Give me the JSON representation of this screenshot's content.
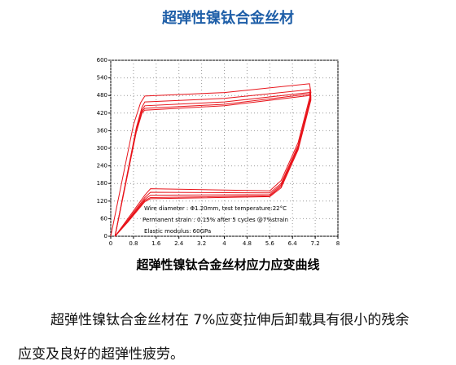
{
  "title": "超弹性镍钛合金丝材",
  "chart_data": {
    "type": "line",
    "xlim": [
      0,
      8
    ],
    "xticks": [
      0,
      0.8,
      1.6,
      2.4,
      3.2,
      4,
      4.8,
      5.6,
      6.4,
      7.2,
      8
    ],
    "ylim": [
      0,
      600
    ],
    "yticks": [
      0,
      60,
      120,
      180,
      240,
      300,
      360,
      420,
      480,
      540,
      600
    ],
    "grid": true,
    "annotations": [
      "Wire diameter : Φ1.20mm, test temperature:22°C",
      "Permanent strain : 0.15% after 5 cycles @7%strain",
      "Elastic modulus: 60GPa"
    ],
    "series": [
      {
        "color": "#e8141b",
        "x": [
          0,
          0.8,
          1.05,
          1.2,
          4,
          7,
          7.05,
          6.6,
          6.0,
          5.6,
          1.4,
          1.2,
          0.6,
          0.15
        ],
        "values": [
          0,
          380,
          455,
          478,
          490,
          520,
          490,
          320,
          190,
          155,
          162,
          140,
          60,
          0
        ]
      },
      {
        "color": "#e8141b",
        "x": [
          0.15,
          0.9,
          1.1,
          1.2,
          4,
          7,
          7.05,
          6.6,
          6.0,
          5.6,
          1.4,
          1.2,
          0.6,
          0.15
        ],
        "values": [
          0,
          370,
          440,
          458,
          470,
          500,
          480,
          310,
          180,
          148,
          150,
          132,
          55,
          0
        ]
      },
      {
        "color": "#e8141b",
        "x": [
          0.15,
          0.9,
          1.1,
          1.2,
          4,
          7,
          7.05,
          6.6,
          6.0,
          5.6,
          1.4,
          1.2,
          0.6,
          0.15
        ],
        "values": [
          0,
          365,
          430,
          445,
          458,
          490,
          475,
          305,
          175,
          142,
          140,
          126,
          52,
          0
        ]
      },
      {
        "color": "#e8141b",
        "x": [
          0.15,
          0.9,
          1.1,
          1.2,
          4,
          7,
          7.05,
          6.6,
          6.0,
          5.6,
          1.4,
          1.2,
          0.6,
          0.15
        ],
        "values": [
          0,
          360,
          425,
          436,
          450,
          485,
          470,
          300,
          170,
          138,
          132,
          122,
          50,
          0
        ]
      },
      {
        "color": "#e8141b",
        "x": [
          0.15,
          0.9,
          1.1,
          1.2,
          4,
          7,
          7.05,
          6.6,
          6.0,
          5.6,
          1.4,
          1.2,
          0.6,
          0.15
        ],
        "values": [
          0,
          355,
          420,
          430,
          445,
          480,
          465,
          295,
          165,
          135,
          128,
          118,
          48,
          0
        ]
      }
    ]
  },
  "caption": "超弹性镍钛合金丝材应力应变曲线",
  "paragraph": [
    "超弹性镍钛合金丝材在 7%应变拉伸后卸载具有很小的残余",
    "应变及良好的超弹性疲劳。"
  ]
}
